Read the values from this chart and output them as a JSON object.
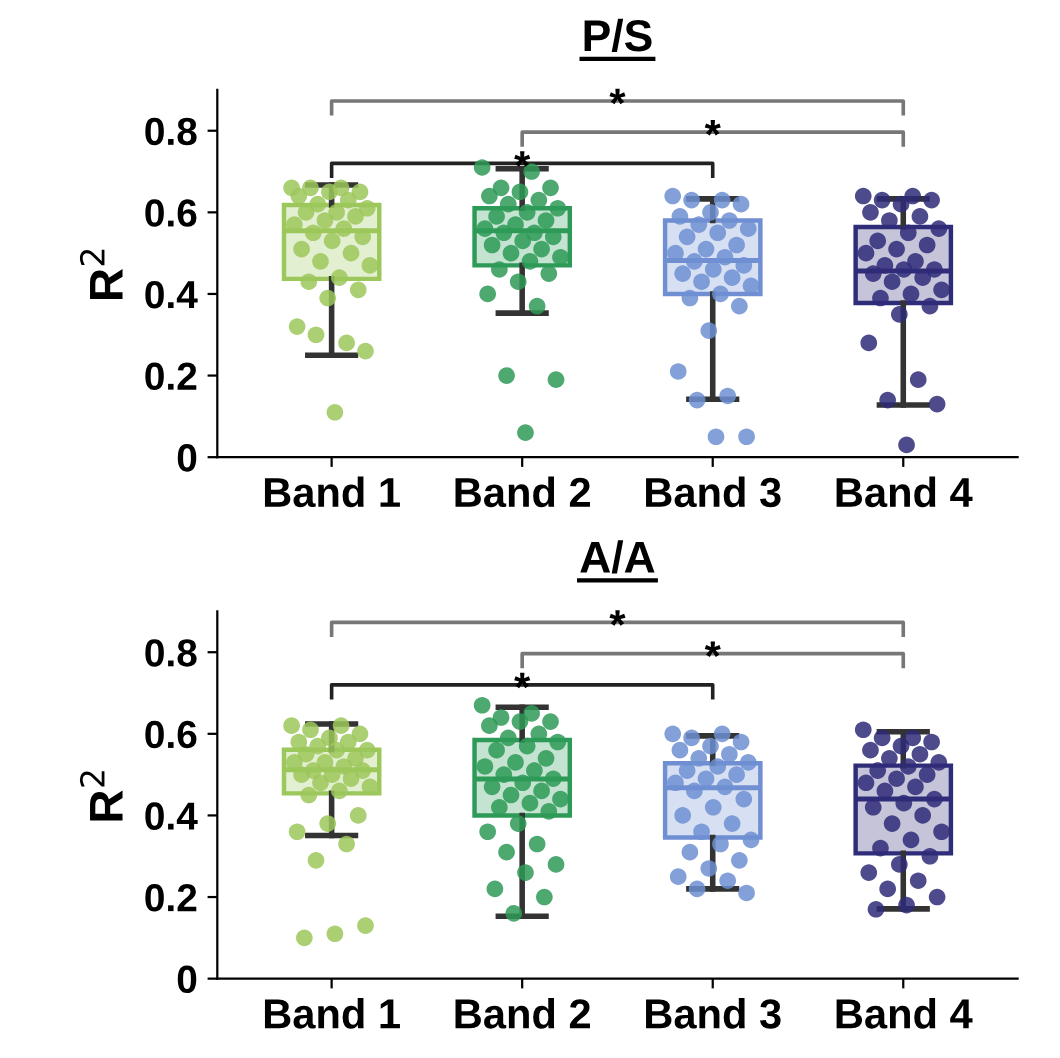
{
  "chart_data": [
    {
      "type": "box",
      "title": "P/S",
      "ylabel": "R$^{2}$",
      "categories": [
        "Band 1",
        "Band 2",
        "Band 3",
        "Band 4"
      ],
      "colors": [
        "#9cc75b",
        "#2e9a57",
        "#6f8fd2",
        "#2f2c79"
      ],
      "ylim": [
        0,
        0.9
      ],
      "yticks": [
        0,
        0.2,
        0.4,
        0.6,
        0.8
      ],
      "grid": false,
      "legend": false,
      "annotations": [
        "*",
        "*",
        "*"
      ],
      "boxes": [
        {
          "low": 0.25,
          "q1": 0.437,
          "median": 0.555,
          "q3": 0.618,
          "high": 0.667
        },
        {
          "low": 0.353,
          "q1": 0.47,
          "median": 0.555,
          "q3": 0.61,
          "high": 0.707
        },
        {
          "low": 0.142,
          "q1": 0.4,
          "median": 0.482,
          "q3": 0.58,
          "high": 0.633
        },
        {
          "low": 0.128,
          "q1": 0.378,
          "median": 0.456,
          "q3": 0.564,
          "high": 0.633
        }
      ],
      "series": [
        {
          "type": "scatter",
          "color": "#9cc75b",
          "x": [
            "Band 1",
            "Band 1",
            "Band 1",
            "Band 1",
            "Band 1",
            "Band 1",
            "Band 1",
            "Band 1",
            "Band 1",
            "Band 1",
            "Band 1",
            "Band 1",
            "Band 1",
            "Band 1",
            "Band 1",
            "Band 1",
            "Band 1",
            "Band 1",
            "Band 1",
            "Band 1",
            "Band 1",
            "Band 1",
            "Band 1",
            "Band 1",
            "Band 1",
            "Band 1",
            "Band 1",
            "Band 1",
            "Band 1",
            "Band 1",
            "Band 1"
          ],
          "values": [
            0.66,
            0.66,
            0.66,
            0.65,
            0.65,
            0.64,
            0.63,
            0.62,
            0.61,
            0.6,
            0.6,
            0.59,
            0.58,
            0.57,
            0.56,
            0.55,
            0.54,
            0.53,
            0.51,
            0.5,
            0.48,
            0.47,
            0.44,
            0.43,
            0.41,
            0.39,
            0.32,
            0.28,
            0.3,
            0.26,
            0.11
          ]
        },
        {
          "type": "scatter",
          "color": "#2e9a57",
          "x": [
            "Band 2",
            "Band 2",
            "Band 2",
            "Band 2",
            "Band 2",
            "Band 2",
            "Band 2",
            "Band 2",
            "Band 2",
            "Band 2",
            "Band 2",
            "Band 2",
            "Band 2",
            "Band 2",
            "Band 2",
            "Band 2",
            "Band 2",
            "Band 2",
            "Band 2",
            "Band 2",
            "Band 2",
            "Band 2",
            "Band 2",
            "Band 2",
            "Band 2",
            "Band 2",
            "Band 2",
            "Band 2",
            "Band 2",
            "Band 2",
            "Band 2"
          ],
          "values": [
            0.71,
            0.7,
            0.66,
            0.66,
            0.65,
            0.64,
            0.63,
            0.62,
            0.61,
            0.6,
            0.59,
            0.58,
            0.57,
            0.56,
            0.55,
            0.55,
            0.54,
            0.53,
            0.52,
            0.51,
            0.5,
            0.49,
            0.48,
            0.46,
            0.45,
            0.43,
            0.4,
            0.37,
            0.2,
            0.19,
            0.06
          ]
        },
        {
          "type": "scatter",
          "color": "#6f8fd2",
          "x": [
            "Band 3",
            "Band 3",
            "Band 3",
            "Band 3",
            "Band 3",
            "Band 3",
            "Band 3",
            "Band 3",
            "Band 3",
            "Band 3",
            "Band 3",
            "Band 3",
            "Band 3",
            "Band 3",
            "Band 3",
            "Band 3",
            "Band 3",
            "Band 3",
            "Band 3",
            "Band 3",
            "Band 3",
            "Band 3",
            "Band 3",
            "Band 3",
            "Band 3",
            "Band 3",
            "Band 3",
            "Band 3",
            "Band 3",
            "Band 3",
            "Band 3"
          ],
          "values": [
            0.64,
            0.63,
            0.63,
            0.62,
            0.6,
            0.59,
            0.58,
            0.57,
            0.56,
            0.55,
            0.54,
            0.52,
            0.51,
            0.5,
            0.49,
            0.48,
            0.47,
            0.46,
            0.45,
            0.44,
            0.43,
            0.42,
            0.4,
            0.39,
            0.37,
            0.31,
            0.21,
            0.15,
            0.14,
            0.05,
            0.05
          ]
        },
        {
          "type": "scatter",
          "color": "#2f2c79",
          "x": [
            "Band 4",
            "Band 4",
            "Band 4",
            "Band 4",
            "Band 4",
            "Band 4",
            "Band 4",
            "Band 4",
            "Band 4",
            "Band 4",
            "Band 4",
            "Band 4",
            "Band 4",
            "Band 4",
            "Band 4",
            "Band 4",
            "Band 4",
            "Band 4",
            "Band 4",
            "Band 4",
            "Band 4",
            "Band 4",
            "Band 4",
            "Band 4",
            "Band 4",
            "Band 4",
            "Band 4",
            "Band 4",
            "Band 4",
            "Band 4",
            "Band 4"
          ],
          "values": [
            0.64,
            0.64,
            0.63,
            0.63,
            0.62,
            0.6,
            0.59,
            0.58,
            0.56,
            0.55,
            0.53,
            0.52,
            0.51,
            0.5,
            0.48,
            0.47,
            0.46,
            0.46,
            0.45,
            0.44,
            0.43,
            0.41,
            0.4,
            0.39,
            0.37,
            0.35,
            0.28,
            0.19,
            0.14,
            0.13,
            0.03
          ]
        }
      ]
    },
    {
      "type": "box",
      "title": "A/A",
      "ylabel": "R$^{2}$",
      "categories": [
        "Band 1",
        "Band 2",
        "Band 3",
        "Band 4"
      ],
      "colors": [
        "#9cc75b",
        "#2e9a57",
        "#6f8fd2",
        "#2f2c79"
      ],
      "ylim": [
        0,
        0.9
      ],
      "yticks": [
        0,
        0.2,
        0.4,
        0.6,
        0.8
      ],
      "grid": false,
      "legend": false,
      "annotations": [
        "*",
        "*",
        "*"
      ],
      "boxes": [
        {
          "low": 0.351,
          "q1": 0.454,
          "median": 0.512,
          "q3": 0.561,
          "high": 0.624
        },
        {
          "low": 0.153,
          "q1": 0.4,
          "median": 0.489,
          "q3": 0.585,
          "high": 0.665
        },
        {
          "low": 0.22,
          "q1": 0.346,
          "median": 0.468,
          "q3": 0.528,
          "high": 0.595
        },
        {
          "low": 0.171,
          "q1": 0.307,
          "median": 0.44,
          "q3": 0.522,
          "high": 0.605
        }
      ],
      "series": [
        {
          "type": "scatter",
          "color": "#9cc75b",
          "x": [
            "Band 1",
            "Band 1",
            "Band 1",
            "Band 1",
            "Band 1",
            "Band 1",
            "Band 1",
            "Band 1",
            "Band 1",
            "Band 1",
            "Band 1",
            "Band 1",
            "Band 1",
            "Band 1",
            "Band 1",
            "Band 1",
            "Band 1",
            "Band 1",
            "Band 1",
            "Band 1",
            "Band 1",
            "Band 1",
            "Band 1",
            "Band 1",
            "Band 1",
            "Band 1",
            "Band 1",
            "Band 1",
            "Band 1",
            "Band 1",
            "Band 1",
            "Band 1"
          ],
          "values": [
            0.62,
            0.62,
            0.61,
            0.6,
            0.59,
            0.58,
            0.58,
            0.57,
            0.56,
            0.56,
            0.55,
            0.54,
            0.53,
            0.53,
            0.52,
            0.51,
            0.51,
            0.5,
            0.5,
            0.49,
            0.48,
            0.47,
            0.46,
            0.45,
            0.4,
            0.38,
            0.36,
            0.33,
            0.29,
            0.13,
            0.11,
            0.1
          ]
        },
        {
          "type": "scatter",
          "color": "#2e9a57",
          "x": [
            "Band 2",
            "Band 2",
            "Band 2",
            "Band 2",
            "Band 2",
            "Band 2",
            "Band 2",
            "Band 2",
            "Band 2",
            "Band 2",
            "Band 2",
            "Band 2",
            "Band 2",
            "Band 2",
            "Band 2",
            "Band 2",
            "Band 2",
            "Band 2",
            "Band 2",
            "Band 2",
            "Band 2",
            "Band 2",
            "Band 2",
            "Band 2",
            "Band 2",
            "Band 2",
            "Band 2",
            "Band 2",
            "Band 2",
            "Band 2",
            "Band 2",
            "Band 2",
            "Band 2",
            "Band 2"
          ],
          "values": [
            0.67,
            0.65,
            0.64,
            0.63,
            0.63,
            0.62,
            0.6,
            0.59,
            0.58,
            0.57,
            0.56,
            0.54,
            0.53,
            0.52,
            0.51,
            0.5,
            0.49,
            0.48,
            0.47,
            0.46,
            0.45,
            0.44,
            0.43,
            0.42,
            0.41,
            0.38,
            0.36,
            0.33,
            0.31,
            0.28,
            0.26,
            0.22,
            0.2,
            0.16
          ]
        },
        {
          "type": "scatter",
          "color": "#6f8fd2",
          "x": [
            "Band 3",
            "Band 3",
            "Band 3",
            "Band 3",
            "Band 3",
            "Band 3",
            "Band 3",
            "Band 3",
            "Band 3",
            "Band 3",
            "Band 3",
            "Band 3",
            "Band 3",
            "Band 3",
            "Band 3",
            "Band 3",
            "Band 3",
            "Band 3",
            "Band 3",
            "Band 3",
            "Band 3",
            "Band 3",
            "Band 3",
            "Band 3",
            "Band 3",
            "Band 3",
            "Band 3",
            "Band 3",
            "Band 3",
            "Band 3"
          ],
          "values": [
            0.6,
            0.6,
            0.59,
            0.58,
            0.57,
            0.56,
            0.55,
            0.54,
            0.53,
            0.52,
            0.51,
            0.5,
            0.49,
            0.48,
            0.47,
            0.46,
            0.44,
            0.42,
            0.4,
            0.38,
            0.36,
            0.34,
            0.33,
            0.31,
            0.29,
            0.27,
            0.25,
            0.24,
            0.22,
            0.21
          ]
        },
        {
          "type": "scatter",
          "color": "#2f2c79",
          "x": [
            "Band 4",
            "Band 4",
            "Band 4",
            "Band 4",
            "Band 4",
            "Band 4",
            "Band 4",
            "Band 4",
            "Band 4",
            "Band 4",
            "Band 4",
            "Band 4",
            "Band 4",
            "Band 4",
            "Band 4",
            "Band 4",
            "Band 4",
            "Band 4",
            "Band 4",
            "Band 4",
            "Band 4",
            "Band 4",
            "Band 4",
            "Band 4",
            "Band 4",
            "Band 4",
            "Band 4",
            "Band 4",
            "Band 4",
            "Band 4",
            "Band 4",
            "Band 4"
          ],
          "values": [
            0.61,
            0.59,
            0.59,
            0.58,
            0.57,
            0.56,
            0.55,
            0.54,
            0.53,
            0.52,
            0.51,
            0.5,
            0.49,
            0.48,
            0.47,
            0.46,
            0.44,
            0.43,
            0.42,
            0.4,
            0.38,
            0.36,
            0.34,
            0.32,
            0.3,
            0.28,
            0.26,
            0.24,
            0.22,
            0.2,
            0.18,
            0.17
          ]
        }
      ]
    }
  ]
}
